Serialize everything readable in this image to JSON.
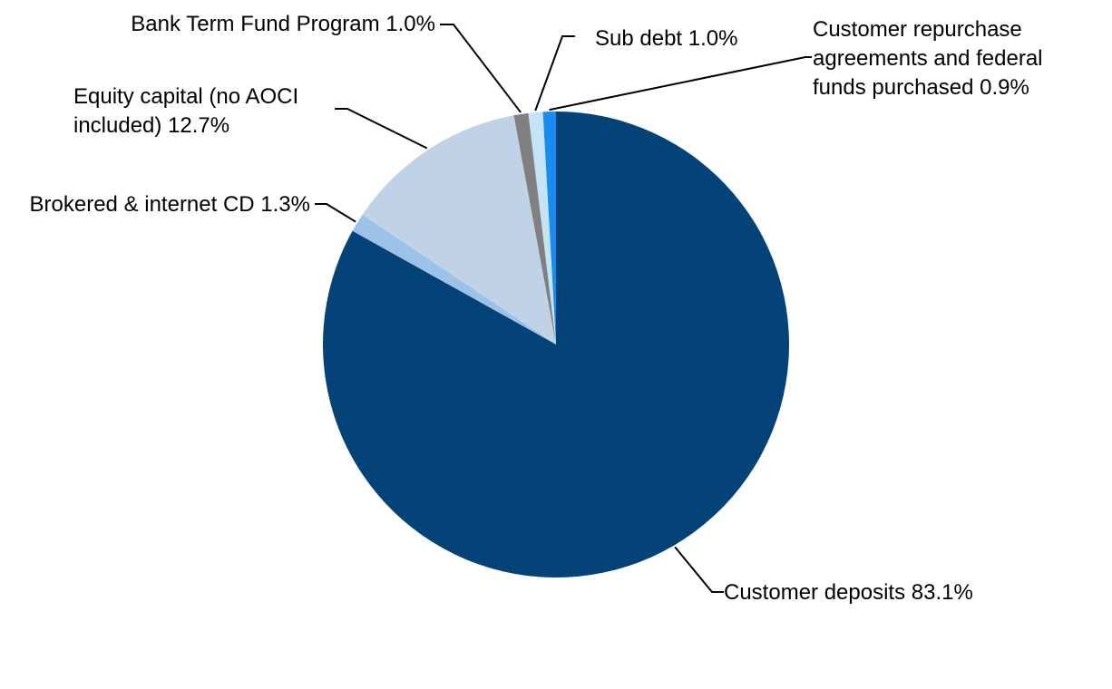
{
  "chart_data": {
    "type": "pie",
    "title": "",
    "slices": [
      {
        "label": "Customer repurchase agreements and federal funds purchased 0.9%",
        "label_lines": [
          "Customer repurchase",
          "agreements and federal",
          "funds purchased 0.9%"
        ],
        "value": 0.9,
        "color": "#1a8cf0"
      },
      {
        "label": "Sub debt 1.0%",
        "label_lines": [
          "Sub debt 1.0%"
        ],
        "value": 1.0,
        "color": "#c5e3f7"
      },
      {
        "label": "Bank Term Fund Program 1.0%",
        "label_lines": [
          "Bank Term Fund Program 1.0%"
        ],
        "value": 1.0,
        "color": "#808080"
      },
      {
        "label": "Equity capital (no AOCI included) 12.7%",
        "label_lines": [
          "Equity capital (no AOCI",
          "included) 12.7%"
        ],
        "value": 12.7,
        "color": "#c0d2e5"
      },
      {
        "label": "Brokered & internet CD 1.3%",
        "label_lines": [
          "Brokered & internet CD 1.3%"
        ],
        "value": 1.3,
        "color": "#9cc2e8"
      },
      {
        "label": "Customer deposits 83.1%",
        "label_lines": [
          "Customer deposits 83.1%"
        ],
        "value": 83.1,
        "color": "#034378"
      }
    ],
    "start_angle": "12 o'clock",
    "direction": "counterclockwise",
    "legend": "none (labels with leader lines)"
  }
}
